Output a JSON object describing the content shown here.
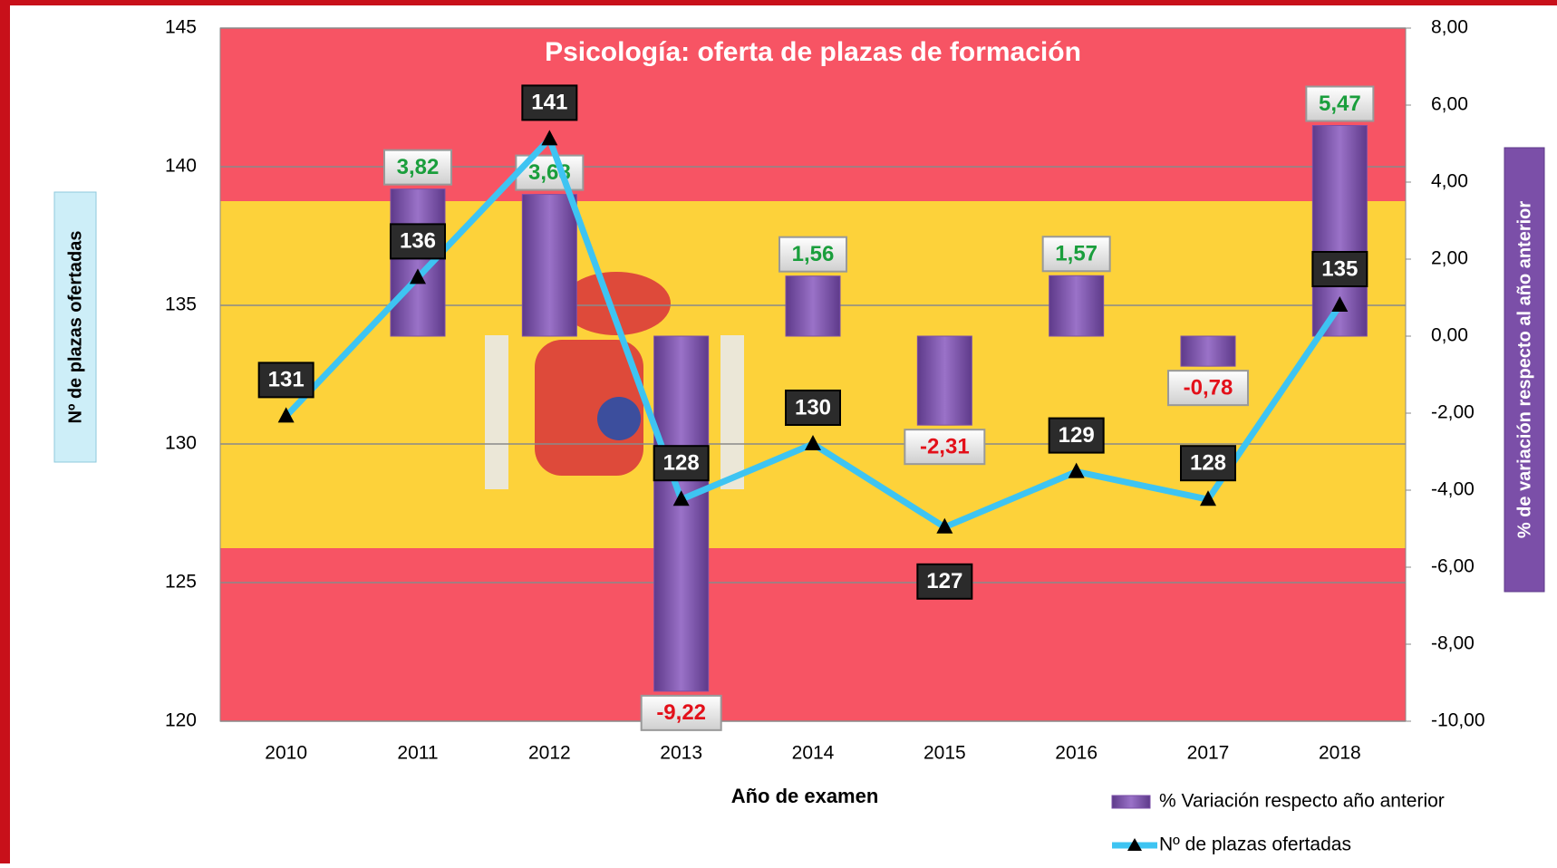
{
  "chart_data": {
    "type": "bar-line",
    "title": "Psicología: oferta de plazas de formación",
    "x_label": "Año de examen",
    "y_label": "Nº de plazas ofertadas",
    "y2_label": "% de variación respecto al año anterior",
    "categories": [
      "2010",
      "2011",
      "2012",
      "2013",
      "2014",
      "2015",
      "2016",
      "2017",
      "2018"
    ],
    "series": [
      {
        "name": "% Variación respecto año anterior",
        "type": "bar",
        "axis": "y2",
        "color": "#7b4fa8",
        "values": [
          null,
          3.82,
          3.68,
          -9.22,
          1.56,
          -2.31,
          1.57,
          -0.78,
          5.47
        ],
        "value_labels": [
          null,
          "3,82",
          "3,68",
          "-9,22",
          "1,56",
          "-2,31",
          "1,57",
          "-0,78",
          "5,47"
        ]
      },
      {
        "name": "Nº de plazas ofertadas",
        "type": "line",
        "axis": "y",
        "color": "#3ec4f2",
        "values": [
          131,
          136,
          141,
          128,
          130,
          127,
          129,
          128,
          135
        ]
      }
    ],
    "ylim": [
      120,
      145
    ],
    "yticks": [
      120,
      125,
      130,
      135,
      140,
      145
    ],
    "y2lim": [
      -10,
      8
    ],
    "y2ticks": [
      {
        "value": -10,
        "label": "-10,00"
      },
      {
        "value": -8,
        "label": "-8,00"
      },
      {
        "value": -6,
        "label": "-6,00"
      },
      {
        "value": -4,
        "label": "-4,00"
      },
      {
        "value": -2,
        "label": "-2,00"
      },
      {
        "value": 0,
        "label": "0,00"
      },
      {
        "value": 2,
        "label": "2,00"
      },
      {
        "value": 4,
        "label": "4,00"
      },
      {
        "value": 6,
        "label": "6,00"
      },
      {
        "value": 8,
        "label": "8,00"
      }
    ],
    "grid": true
  }
}
